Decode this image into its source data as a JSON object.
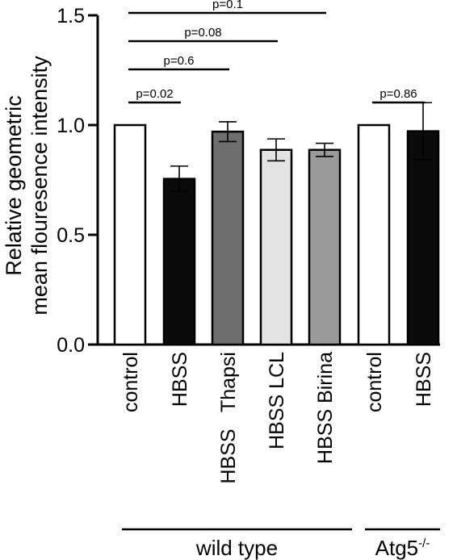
{
  "chart_data": {
    "type": "bar",
    "ylabel_lines": [
      "Relative geometric",
      "mean flouresence intensity"
    ],
    "ylim": [
      0,
      1.5
    ],
    "yticks": [
      "0.0",
      "0.5",
      "1.0",
      "1.5"
    ],
    "ytick_values": [
      0,
      0.5,
      1.0,
      1.5
    ],
    "categories": [
      "control",
      "HBSS",
      "HBSS   Thapsi",
      "HBSS LCL",
      "HBSS Birina",
      "control",
      "HBSS"
    ],
    "values": [
      1.0,
      0.755,
      0.97,
      0.887,
      0.887,
      1.0,
      0.972
    ],
    "errors": [
      0,
      0.058,
      0.045,
      0.05,
      0.03,
      0,
      0.13
    ],
    "bar_colors": [
      "#ffffff",
      "#0b0b0b",
      "#6e6e6e",
      "#e3e3e3",
      "#9a9a9a",
      "#ffffff",
      "#0b0b0b"
    ],
    "comparisons": [
      {
        "label": "p=0.02",
        "from": 0,
        "to": 1,
        "level": 0
      },
      {
        "label": "p=0.6",
        "from": 0,
        "to": 2,
        "level": 1
      },
      {
        "label": "p=0.08",
        "from": 0,
        "to": 3,
        "level": 2
      },
      {
        "label": "p=0.1",
        "from": 0,
        "to": 4,
        "level": 3
      },
      {
        "label": "p=0.86",
        "from": 5,
        "to": 6,
        "level": 0
      }
    ],
    "groups": [
      {
        "label": "wild type",
        "from": 0,
        "to": 4
      },
      {
        "label": "Atg5",
        "superscript": "-/-",
        "from": 5,
        "to": 6
      }
    ],
    "grid": false,
    "legend": "none"
  }
}
